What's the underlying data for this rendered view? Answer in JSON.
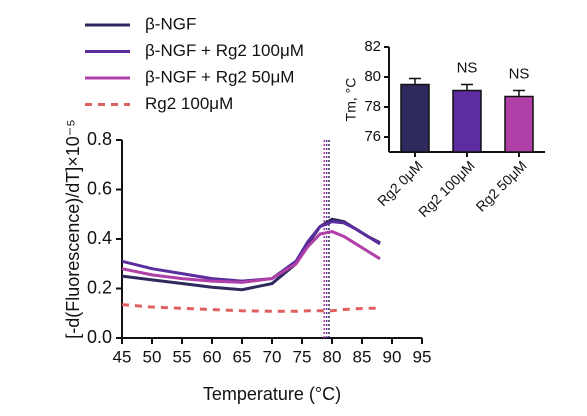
{
  "chart_data": [
    {
      "type": "line",
      "xlabel": "Temperature (°C)",
      "ylabel": "[-d(Fluorescence)/dT]×10⁻⁵",
      "x": [
        45,
        50,
        55,
        60,
        65,
        70,
        74,
        76,
        78,
        80,
        82,
        84,
        86,
        88
      ],
      "series": [
        {
          "name": "β-NGF",
          "color": "#2e2a5e",
          "values": [
            0.25,
            0.235,
            0.22,
            0.205,
            0.195,
            0.22,
            0.3,
            0.38,
            0.45,
            0.48,
            0.47,
            0.44,
            0.41,
            0.385
          ]
        },
        {
          "name": "β-NGF + Rg2 100μM",
          "color": "#5b2d9e",
          "values": [
            0.31,
            0.28,
            0.26,
            0.24,
            0.23,
            0.24,
            0.31,
            0.39,
            0.45,
            0.47,
            0.465,
            0.44,
            0.41,
            0.38
          ]
        },
        {
          "name": "β-NGF + Rg2 50μM",
          "color": "#b03fa8",
          "values": [
            0.28,
            0.255,
            0.24,
            0.23,
            0.225,
            0.24,
            0.3,
            0.37,
            0.42,
            0.43,
            0.41,
            0.38,
            0.35,
            0.32
          ]
        },
        {
          "name": "Rg2 100μM",
          "color": "#e06060",
          "dashed": true,
          "values": [
            0.135,
            0.125,
            0.12,
            0.115,
            0.11,
            0.108,
            0.108,
            0.11,
            0.11,
            0.11,
            0.115,
            0.118,
            0.12,
            0.12
          ]
        }
      ],
      "vlines": [
        {
          "value": 79.5,
          "color": "#2e2a5e"
        },
        {
          "value": 79.1,
          "color": "#5b2d9e"
        },
        {
          "value": 78.7,
          "color": "#b03fa8"
        }
      ],
      "xlim": [
        45,
        95
      ],
      "xticks": [
        45,
        50,
        55,
        60,
        65,
        70,
        75,
        80,
        85,
        90,
        95
      ],
      "ylim": [
        0,
        0.8
      ],
      "yticks": [
        {
          "value": 0,
          "label": "0.0"
        },
        0.2,
        0.4,
        0.6,
        0.8
      ],
      "legend": "top-left"
    },
    {
      "type": "bar",
      "ylabel": "Tm, °C",
      "categories": [
        "Rg2 0μM",
        "Rg2 100μM",
        "Rg2 50μM"
      ],
      "values": [
        79.5,
        79.1,
        78.7
      ],
      "errors": [
        0.4,
        0.4,
        0.4
      ],
      "colors": [
        "#2e2a5e",
        "#5b2d9e",
        "#b03fa8"
      ],
      "bar_labels": [
        null,
        "NS",
        "NS"
      ],
      "ylim": [
        75,
        82
      ],
      "yticks": [
        76,
        78,
        80,
        82
      ]
    }
  ]
}
